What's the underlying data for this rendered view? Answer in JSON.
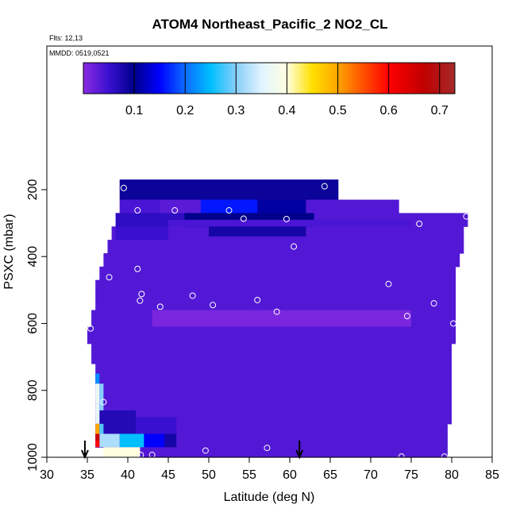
{
  "chart_data": {
    "type": "heatmap",
    "title": "ATOM4 Northeast_Pacific_2 NO2_CL",
    "flights_label": "Flts: 12,13",
    "mmdd_label": "MMDD: 0519,0521",
    "xlabel": "Latitude (deg N)",
    "ylabel": "PSXC (mbar)",
    "xlim": [
      30,
      85
    ],
    "ylim": [
      1000,
      0
    ],
    "xticks": [
      "30",
      "35",
      "40",
      "45",
      "50",
      "55",
      "60",
      "65",
      "70",
      "75",
      "80",
      "85"
    ],
    "yticks": [
      "200",
      "400",
      "600",
      "800",
      "1000"
    ],
    "colorbar": {
      "range": [
        0,
        0.73
      ],
      "ticks": [
        "0.1",
        "0.2",
        "0.3",
        "0.4",
        "0.5",
        "0.6",
        "0.7"
      ],
      "stops": [
        {
          "v": 0.0,
          "color": "#8a2be2"
        },
        {
          "v": 0.05,
          "color": "#3a10d0"
        },
        {
          "v": 0.1,
          "color": "#00008b"
        },
        {
          "v": 0.15,
          "color": "#0000ff"
        },
        {
          "v": 0.2,
          "color": "#0a6cff"
        },
        {
          "v": 0.25,
          "color": "#00bfff"
        },
        {
          "v": 0.3,
          "color": "#87cefa"
        },
        {
          "v": 0.35,
          "color": "#e0f4ff"
        },
        {
          "v": 0.4,
          "color": "#ffffe0"
        },
        {
          "v": 0.45,
          "color": "#ffe000"
        },
        {
          "v": 0.5,
          "color": "#ffa500"
        },
        {
          "v": 0.55,
          "color": "#ff5000"
        },
        {
          "v": 0.6,
          "color": "#ff0000"
        },
        {
          "v": 0.67,
          "color": "#c00000"
        },
        {
          "v": 0.73,
          "color": "#a52a2a"
        }
      ]
    },
    "region": [
      {
        "lat_min": 39.0,
        "lat_max": 66.0,
        "p_top": 170,
        "p_bot": 230
      },
      {
        "lat_min": 39.0,
        "lat_max": 73.5,
        "p_top": 230,
        "p_bot": 270
      },
      {
        "lat_min": 38.5,
        "lat_max": 82.0,
        "p_top": 270,
        "p_bot": 310
      },
      {
        "lat_min": 38.0,
        "lat_max": 81.5,
        "p_top": 310,
        "p_bot": 350
      },
      {
        "lat_min": 37.5,
        "lat_max": 81.5,
        "p_top": 350,
        "p_bot": 390
      },
      {
        "lat_min": 37.0,
        "lat_max": 81.0,
        "p_top": 390,
        "p_bot": 430
      },
      {
        "lat_min": 36.5,
        "lat_max": 80.5,
        "p_top": 430,
        "p_bot": 470
      },
      {
        "lat_min": 36.0,
        "lat_max": 80.5,
        "p_top": 470,
        "p_bot": 510
      },
      {
        "lat_min": 36.0,
        "lat_max": 80.5,
        "p_top": 510,
        "p_bot": 560
      },
      {
        "lat_min": 35.5,
        "lat_max": 80.5,
        "p_top": 560,
        "p_bot": 610
      },
      {
        "lat_min": 35.0,
        "lat_max": 80.5,
        "p_top": 610,
        "p_bot": 660
      },
      {
        "lat_min": 35.5,
        "lat_max": 80.0,
        "p_top": 660,
        "p_bot": 720
      },
      {
        "lat_min": 36.0,
        "lat_max": 80.0,
        "p_top": 720,
        "p_bot": 780
      },
      {
        "lat_min": 36.0,
        "lat_max": 80.0,
        "p_top": 780,
        "p_bot": 840
      },
      {
        "lat_min": 36.0,
        "lat_max": 80.0,
        "p_top": 840,
        "p_bot": 900
      },
      {
        "lat_min": 36.0,
        "lat_max": 79.5,
        "p_top": 900,
        "p_bot": 940
      },
      {
        "lat_min": 36.0,
        "lat_max": 79.5,
        "p_top": 940,
        "p_bot": 970
      },
      {
        "lat_min": 41.5,
        "lat_max": 79.5,
        "p_top": 970,
        "p_bot": 1000
      }
    ],
    "patches": [
      {
        "lat_min": 39.0,
        "lat_max": 66.0,
        "p_top": 170,
        "p_bot": 230,
        "value": 0.09
      },
      {
        "lat_min": 39.0,
        "lat_max": 44.0,
        "p_top": 230,
        "p_bot": 270,
        "value": 0.04
      },
      {
        "lat_min": 44.0,
        "lat_max": 49.0,
        "p_top": 230,
        "p_bot": 270,
        "value": 0.03
      },
      {
        "lat_min": 49.0,
        "lat_max": 56.0,
        "p_top": 230,
        "p_bot": 270,
        "value": 0.16
      },
      {
        "lat_min": 56.0,
        "lat_max": 62.0,
        "p_top": 230,
        "p_bot": 270,
        "value": 0.11
      },
      {
        "lat_min": 38.5,
        "lat_max": 47.0,
        "p_top": 270,
        "p_bot": 310,
        "value": 0.06
      },
      {
        "lat_min": 47.0,
        "lat_max": 63.0,
        "p_top": 270,
        "p_bot": 310,
        "value": 0.1
      },
      {
        "lat_min": 50.0,
        "lat_max": 62.0,
        "p_top": 310,
        "p_bot": 340,
        "value": 0.08
      },
      {
        "lat_min": 38.5,
        "lat_max": 45.0,
        "p_top": 310,
        "p_bot": 350,
        "value": 0.05
      },
      {
        "lat_min": 45.0,
        "lat_max": 75.0,
        "p_top": 290,
        "p_bot": 310,
        "value": 0.04
      },
      {
        "lat_min": 43.0,
        "lat_max": 75.0,
        "p_top": 560,
        "p_bot": 610,
        "value": 0.01
      },
      {
        "lat_min": 36.5,
        "lat_max": 41.0,
        "p_top": 860,
        "p_bot": 930,
        "value": 0.07
      },
      {
        "lat_min": 41.0,
        "lat_max": 46.0,
        "p_top": 880,
        "p_bot": 935,
        "value": 0.05
      },
      {
        "lat_min": 36.5,
        "lat_max": 39.0,
        "p_top": 930,
        "p_bot": 970,
        "value": 0.32
      },
      {
        "lat_min": 39.0,
        "lat_max": 42.0,
        "p_top": 930,
        "p_bot": 970,
        "value": 0.25
      },
      {
        "lat_min": 42.0,
        "lat_max": 44.5,
        "p_top": 930,
        "p_bot": 970,
        "value": 0.15
      },
      {
        "lat_min": 44.5,
        "lat_max": 46.0,
        "p_top": 930,
        "p_bot": 970,
        "value": 0.08
      },
      {
        "lat_min": 36.0,
        "lat_max": 36.5,
        "p_top": 750,
        "p_bot": 780,
        "value": 0.22
      },
      {
        "lat_min": 36.0,
        "lat_max": 36.5,
        "p_top": 780,
        "p_bot": 840,
        "value": 0.37
      },
      {
        "lat_min": 36.5,
        "lat_max": 37.0,
        "p_top": 780,
        "p_bot": 860,
        "value": 0.3
      },
      {
        "lat_min": 36.0,
        "lat_max": 36.5,
        "p_top": 840,
        "p_bot": 900,
        "value": 0.36
      },
      {
        "lat_min": 36.0,
        "lat_max": 36.5,
        "p_top": 900,
        "p_bot": 930,
        "value": 0.5
      },
      {
        "lat_min": 36.5,
        "lat_max": 37.0,
        "p_top": 900,
        "p_bot": 930,
        "value": 0.28
      },
      {
        "lat_min": 36.0,
        "lat_max": 36.5,
        "p_top": 930,
        "p_bot": 950,
        "value": 0.66
      },
      {
        "lat_min": 36.0,
        "lat_max": 36.5,
        "p_top": 950,
        "p_bot": 970,
        "value": 0.6
      },
      {
        "lat_min": 37.0,
        "lat_max": 41.5,
        "p_top": 970,
        "p_bot": 1000,
        "value": 0.4
      }
    ],
    "points": [
      {
        "lat": 39.5,
        "p": 195
      },
      {
        "lat": 41.2,
        "p": 262
      },
      {
        "lat": 45.8,
        "p": 262
      },
      {
        "lat": 52.5,
        "p": 262
      },
      {
        "lat": 54.3,
        "p": 287
      },
      {
        "lat": 59.6,
        "p": 288
      },
      {
        "lat": 64.3,
        "p": 190
      },
      {
        "lat": 66.8,
        "p": 190
      },
      {
        "lat": 69.2,
        "p": 220
      },
      {
        "lat": 76.0,
        "p": 302
      },
      {
        "lat": 81.8,
        "p": 280
      },
      {
        "lat": 60.5,
        "p": 370
      },
      {
        "lat": 41.2,
        "p": 437
      },
      {
        "lat": 37.7,
        "p": 462
      },
      {
        "lat": 41.7,
        "p": 512
      },
      {
        "lat": 41.5,
        "p": 532
      },
      {
        "lat": 44.0,
        "p": 550
      },
      {
        "lat": 48.0,
        "p": 517
      },
      {
        "lat": 50.5,
        "p": 545
      },
      {
        "lat": 56.0,
        "p": 530
      },
      {
        "lat": 58.4,
        "p": 565
      },
      {
        "lat": 72.2,
        "p": 482
      },
      {
        "lat": 77.8,
        "p": 540
      },
      {
        "lat": 74.5,
        "p": 578
      },
      {
        "lat": 80.2,
        "p": 600
      },
      {
        "lat": 35.4,
        "p": 615
      },
      {
        "lat": 37.0,
        "p": 835
      },
      {
        "lat": 41.6,
        "p": 993
      },
      {
        "lat": 43.0,
        "p": 993
      },
      {
        "lat": 49.6,
        "p": 980
      },
      {
        "lat": 57.2,
        "p": 972
      },
      {
        "lat": 73.8,
        "p": 998
      },
      {
        "lat": 79.1,
        "p": 998
      }
    ],
    "arrows": [
      {
        "lat": 34.7
      },
      {
        "lat": 61.2
      }
    ]
  }
}
